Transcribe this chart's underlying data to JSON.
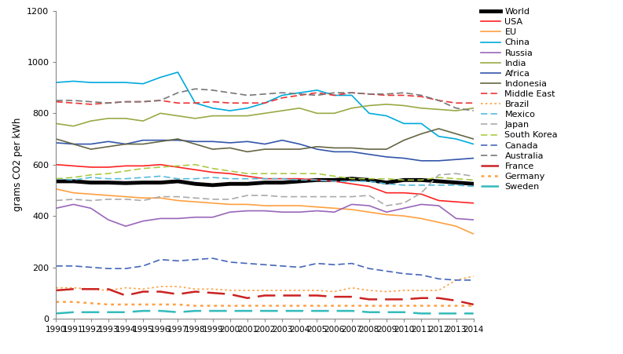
{
  "years": [
    1990,
    1991,
    1992,
    1993,
    1994,
    1995,
    1996,
    1997,
    1998,
    1999,
    2000,
    2001,
    2002,
    2003,
    2004,
    2005,
    2006,
    2007,
    2008,
    2009,
    2010,
    2011,
    2012,
    2013,
    2014
  ],
  "series": {
    "World": [
      535,
      535,
      530,
      530,
      528,
      530,
      530,
      535,
      525,
      520,
      525,
      525,
      530,
      530,
      535,
      540,
      540,
      545,
      540,
      530,
      540,
      540,
      535,
      530,
      525
    ],
    "USA": [
      600,
      595,
      590,
      590,
      595,
      595,
      600,
      590,
      580,
      570,
      565,
      555,
      545,
      545,
      545,
      540,
      535,
      525,
      515,
      490,
      490,
      485,
      460,
      455,
      450
    ],
    "EU": [
      505,
      490,
      485,
      480,
      475,
      470,
      470,
      460,
      455,
      450,
      445,
      445,
      440,
      440,
      440,
      435,
      430,
      425,
      415,
      405,
      400,
      390,
      375,
      360,
      330
    ],
    "China": [
      920,
      925,
      920,
      920,
      920,
      915,
      940,
      960,
      840,
      820,
      810,
      820,
      840,
      870,
      880,
      890,
      870,
      870,
      800,
      790,
      760,
      760,
      710,
      700,
      680
    ],
    "Russia": [
      430,
      445,
      430,
      385,
      360,
      380,
      390,
      390,
      395,
      395,
      415,
      420,
      420,
      415,
      415,
      420,
      415,
      445,
      440,
      415,
      430,
      445,
      440,
      390,
      385
    ],
    "India": [
      760,
      750,
      770,
      780,
      780,
      770,
      800,
      790,
      780,
      790,
      790,
      790,
      800,
      810,
      820,
      800,
      800,
      820,
      830,
      835,
      830,
      820,
      815,
      810,
      820
    ],
    "Africa": [
      685,
      680,
      680,
      690,
      680,
      695,
      695,
      695,
      690,
      690,
      685,
      690,
      680,
      695,
      680,
      660,
      650,
      650,
      640,
      630,
      625,
      615,
      615,
      620,
      625
    ],
    "Indonesia": [
      700,
      680,
      660,
      670,
      680,
      680,
      690,
      700,
      680,
      660,
      665,
      650,
      660,
      660,
      660,
      670,
      665,
      665,
      660,
      660,
      695,
      720,
      740,
      720,
      700
    ],
    "Middle East": [
      845,
      840,
      835,
      840,
      845,
      845,
      850,
      840,
      840,
      845,
      840,
      840,
      840,
      860,
      870,
      880,
      870,
      880,
      875,
      870,
      870,
      865,
      850,
      840,
      840
    ],
    "Brazil": [
      120,
      120,
      115,
      110,
      120,
      115,
      125,
      125,
      115,
      115,
      110,
      110,
      110,
      110,
      110,
      110,
      105,
      120,
      110,
      105,
      110,
      110,
      110,
      150,
      165
    ],
    "Mexico": [
      545,
      540,
      550,
      545,
      545,
      550,
      555,
      545,
      545,
      550,
      545,
      545,
      545,
      545,
      540,
      540,
      535,
      535,
      535,
      525,
      520,
      520,
      520,
      520,
      515
    ],
    "Japan": [
      460,
      465,
      460,
      465,
      465,
      460,
      475,
      475,
      470,
      465,
      465,
      480,
      480,
      475,
      475,
      475,
      475,
      475,
      480,
      440,
      450,
      490,
      560,
      565,
      555
    ],
    "South Korea": [
      545,
      550,
      560,
      565,
      575,
      585,
      590,
      595,
      600,
      585,
      575,
      565,
      565,
      565,
      565,
      565,
      555,
      545,
      545,
      545,
      540,
      540,
      550,
      545,
      540
    ],
    "Canada": [
      205,
      205,
      200,
      195,
      195,
      205,
      230,
      225,
      230,
      235,
      220,
      215,
      210,
      205,
      200,
      215,
      210,
      215,
      195,
      185,
      175,
      170,
      155,
      150,
      150
    ],
    "Australia": [
      850,
      850,
      845,
      840,
      845,
      845,
      850,
      880,
      895,
      890,
      880,
      870,
      875,
      880,
      875,
      870,
      880,
      880,
      875,
      875,
      880,
      870,
      850,
      820,
      810
    ],
    "France": [
      110,
      115,
      115,
      115,
      90,
      105,
      105,
      95,
      105,
      100,
      95,
      80,
      90,
      90,
      90,
      90,
      85,
      85,
      75,
      75,
      75,
      80,
      80,
      70,
      55
    ],
    "Germany": [
      65,
      65,
      60,
      55,
      55,
      55,
      55,
      55,
      50,
      50,
      50,
      50,
      50,
      50,
      50,
      50,
      50,
      50,
      50,
      50,
      50,
      50,
      50,
      50,
      50
    ],
    "Sweden": [
      20,
      25,
      25,
      25,
      25,
      30,
      30,
      25,
      30,
      30,
      30,
      30,
      30,
      30,
      30,
      30,
      30,
      30,
      25,
      25,
      25,
      20,
      20,
      20,
      20
    ]
  },
  "styles": {
    "World": {
      "color": "#000000",
      "lw": 3.5,
      "ls": "solid",
      "dashes": null
    },
    "USA": {
      "color": "#FF2222",
      "lw": 1.2,
      "ls": "solid",
      "dashes": null
    },
    "EU": {
      "color": "#FFA040",
      "lw": 1.2,
      "ls": "solid",
      "dashes": null
    },
    "China": {
      "color": "#00AADD",
      "lw": 1.2,
      "ls": "solid",
      "dashes": null
    },
    "Russia": {
      "color": "#9966BB",
      "lw": 1.2,
      "ls": "solid",
      "dashes": null
    },
    "India": {
      "color": "#99AA44",
      "lw": 1.2,
      "ls": "solid",
      "dashes": null
    },
    "Africa": {
      "color": "#3355AA",
      "lw": 1.2,
      "ls": "solid",
      "dashes": null
    },
    "Indonesia": {
      "color": "#666644",
      "lw": 1.2,
      "ls": "solid",
      "dashes": null
    },
    "Middle East": {
      "color": "#EE3333",
      "lw": 1.2,
      "ls": "dashed",
      "dashes": [
        5,
        2.5
      ]
    },
    "Brazil": {
      "color": "#FFA040",
      "lw": 1.2,
      "ls": "dotted",
      "dashes": [
        1.5,
        2
      ]
    },
    "Mexico": {
      "color": "#55BBDD",
      "lw": 1.2,
      "ls": "dashed",
      "dashes": [
        5,
        2.5
      ]
    },
    "Japan": {
      "color": "#AAAAAA",
      "lw": 1.2,
      "ls": "dashed",
      "dashes": [
        5,
        2.5
      ]
    },
    "South Korea": {
      "color": "#AACC44",
      "lw": 1.2,
      "ls": "dashed",
      "dashes": [
        5,
        2.5
      ]
    },
    "Canada": {
      "color": "#4466BB",
      "lw": 1.2,
      "ls": "dashed",
      "dashes": [
        5,
        2.5
      ]
    },
    "Australia": {
      "color": "#777777",
      "lw": 1.2,
      "ls": "dashed",
      "dashes": [
        5,
        2.5
      ]
    },
    "France": {
      "color": "#CC2222",
      "lw": 1.8,
      "ls": "dashed",
      "dashes": [
        9,
        4
      ]
    },
    "Germany": {
      "color": "#FFA040",
      "lw": 1.8,
      "ls": "dotted",
      "dashes": [
        1.5,
        2
      ]
    },
    "Sweden": {
      "color": "#33BBBB",
      "lw": 1.8,
      "ls": "dashed",
      "dashes": [
        9,
        4
      ]
    }
  },
  "ylabel": "grams CO2 per kWh",
  "ylim": [
    0,
    1200
  ],
  "yticks": [
    0,
    200,
    400,
    600,
    800,
    1000,
    1200
  ],
  "background_color": "#FFFFFF",
  "legend_order": [
    "World",
    "USA",
    "EU",
    "China",
    "Russia",
    "India",
    "Africa",
    "Indonesia",
    "Middle East",
    "Brazil",
    "Mexico",
    "Japan",
    "South Korea",
    "Canada",
    "Australia",
    "France",
    "Germany",
    "Sweden"
  ]
}
